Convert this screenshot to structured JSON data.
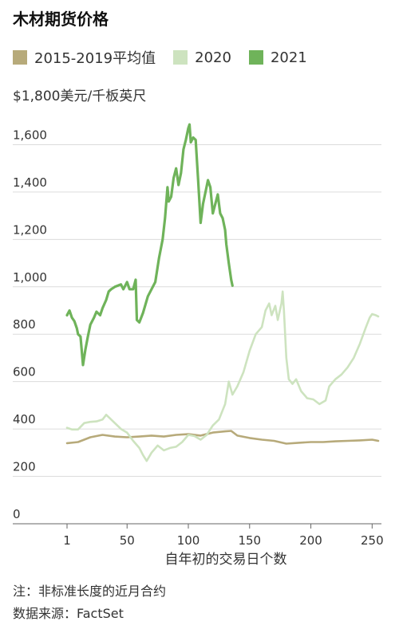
{
  "title": "木材期货价格",
  "legend": {
    "items": [
      {
        "label": "2015-2019平均值",
        "color": "#b7aa7a"
      },
      {
        "label": "2020",
        "color": "#cde3bf"
      },
      {
        "label": "2021",
        "color": "#6fb35a"
      }
    ]
  },
  "unit_label": "$1,800美元/千板英尺",
  "footnote": "注：非标准长度的近月合约",
  "source": "数据来源：FactSet",
  "chart_data": {
    "type": "line",
    "title": "木材期货价格",
    "xlabel": "自年初的交易日个数",
    "ylabel": "美元/千板英尺",
    "xlim": [
      1,
      255
    ],
    "ylim": [
      0,
      1800
    ],
    "x_ticks": [
      1,
      50,
      100,
      150,
      200,
      250
    ],
    "y_ticks": [
      {
        "value": 1800,
        "label": ""
      },
      {
        "value": 1600,
        "label": "1,600"
      },
      {
        "value": 1400,
        "label": "1,400"
      },
      {
        "value": 1200,
        "label": "1,200"
      },
      {
        "value": 1000,
        "label": "1,000"
      },
      {
        "value": 800,
        "label": "800"
      },
      {
        "value": 600,
        "label": "600"
      },
      {
        "value": 400,
        "label": "400"
      },
      {
        "value": 200,
        "label": "200"
      },
      {
        "value": 0,
        "label": "0"
      }
    ],
    "grid": "horizontal",
    "legend_position": "top-left",
    "series": [
      {
        "name": "2015-2019平均值",
        "color": "#b7aa7a",
        "points": [
          [
            1,
            340
          ],
          [
            10,
            345
          ],
          [
            20,
            365
          ],
          [
            30,
            375
          ],
          [
            40,
            368
          ],
          [
            50,
            365
          ],
          [
            60,
            368
          ],
          [
            70,
            372
          ],
          [
            80,
            368
          ],
          [
            90,
            375
          ],
          [
            100,
            378
          ],
          [
            110,
            372
          ],
          [
            120,
            385
          ],
          [
            130,
            390
          ],
          [
            135,
            392
          ],
          [
            140,
            372
          ],
          [
            150,
            362
          ],
          [
            160,
            355
          ],
          [
            170,
            350
          ],
          [
            180,
            338
          ],
          [
            190,
            342
          ],
          [
            200,
            345
          ],
          [
            210,
            345
          ],
          [
            220,
            348
          ],
          [
            230,
            350
          ],
          [
            240,
            352
          ],
          [
            250,
            355
          ],
          [
            255,
            350
          ]
        ]
      },
      {
        "name": "2020",
        "color": "#cde3bf",
        "points": [
          [
            1,
            405
          ],
          [
            5,
            398
          ],
          [
            10,
            398
          ],
          [
            15,
            425
          ],
          [
            20,
            430
          ],
          [
            25,
            432
          ],
          [
            30,
            440
          ],
          [
            33,
            460
          ],
          [
            36,
            445
          ],
          [
            40,
            425
          ],
          [
            45,
            400
          ],
          [
            50,
            385
          ],
          [
            55,
            350
          ],
          [
            60,
            320
          ],
          [
            63,
            290
          ],
          [
            66,
            265
          ],
          [
            70,
            300
          ],
          [
            75,
            330
          ],
          [
            80,
            310
          ],
          [
            85,
            320
          ],
          [
            90,
            325
          ],
          [
            95,
            345
          ],
          [
            100,
            375
          ],
          [
            105,
            370
          ],
          [
            110,
            355
          ],
          [
            115,
            375
          ],
          [
            120,
            415
          ],
          [
            125,
            440
          ],
          [
            130,
            505
          ],
          [
            133,
            600
          ],
          [
            136,
            545
          ],
          [
            140,
            580
          ],
          [
            145,
            640
          ],
          [
            150,
            730
          ],
          [
            155,
            800
          ],
          [
            160,
            830
          ],
          [
            163,
            900
          ],
          [
            166,
            930
          ],
          [
            168,
            880
          ],
          [
            171,
            920
          ],
          [
            173,
            860
          ],
          [
            176,
            930
          ],
          [
            177,
            980
          ],
          [
            178,
            900
          ],
          [
            180,
            700
          ],
          [
            182,
            610
          ],
          [
            185,
            590
          ],
          [
            188,
            610
          ],
          [
            192,
            560
          ],
          [
            197,
            530
          ],
          [
            202,
            525
          ],
          [
            207,
            505
          ],
          [
            212,
            520
          ],
          [
            215,
            580
          ],
          [
            220,
            610
          ],
          [
            225,
            630
          ],
          [
            230,
            660
          ],
          [
            235,
            700
          ],
          [
            240,
            760
          ],
          [
            245,
            830
          ],
          [
            248,
            870
          ],
          [
            250,
            885
          ],
          [
            253,
            880
          ],
          [
            255,
            875
          ]
        ]
      },
      {
        "name": "2021",
        "color": "#6fb35a",
        "points": [
          [
            1,
            880
          ],
          [
            3,
            900
          ],
          [
            5,
            870
          ],
          [
            7,
            855
          ],
          [
            9,
            825
          ],
          [
            10,
            800
          ],
          [
            12,
            790
          ],
          [
            14,
            670
          ],
          [
            16,
            735
          ],
          [
            18,
            790
          ],
          [
            20,
            840
          ],
          [
            23,
            870
          ],
          [
            25,
            895
          ],
          [
            28,
            880
          ],
          [
            30,
            910
          ],
          [
            33,
            945
          ],
          [
            35,
            980
          ],
          [
            37,
            990
          ],
          [
            40,
            1000
          ],
          [
            45,
            1010
          ],
          [
            47,
            990
          ],
          [
            50,
            1020
          ],
          [
            52,
            990
          ],
          [
            55,
            990
          ],
          [
            57,
            1030
          ],
          [
            58,
            860
          ],
          [
            60,
            850
          ],
          [
            63,
            890
          ],
          [
            67,
            960
          ],
          [
            70,
            990
          ],
          [
            73,
            1020
          ],
          [
            76,
            1120
          ],
          [
            79,
            1200
          ],
          [
            81,
            1290
          ],
          [
            83,
            1420
          ],
          [
            84,
            1360
          ],
          [
            86,
            1380
          ],
          [
            88,
            1460
          ],
          [
            90,
            1500
          ],
          [
            92,
            1430
          ],
          [
            94,
            1480
          ],
          [
            96,
            1580
          ],
          [
            98,
            1620
          ],
          [
            100,
            1670
          ],
          [
            101,
            1685
          ],
          [
            102,
            1610
          ],
          [
            104,
            1630
          ],
          [
            106,
            1620
          ],
          [
            108,
            1450
          ],
          [
            110,
            1270
          ],
          [
            112,
            1350
          ],
          [
            114,
            1400
          ],
          [
            116,
            1450
          ],
          [
            118,
            1420
          ],
          [
            120,
            1310
          ],
          [
            122,
            1350
          ],
          [
            124,
            1390
          ],
          [
            126,
            1310
          ],
          [
            128,
            1290
          ],
          [
            130,
            1240
          ],
          [
            131,
            1180
          ],
          [
            133,
            1100
          ],
          [
            135,
            1030
          ],
          [
            136,
            1005
          ]
        ]
      }
    ]
  }
}
